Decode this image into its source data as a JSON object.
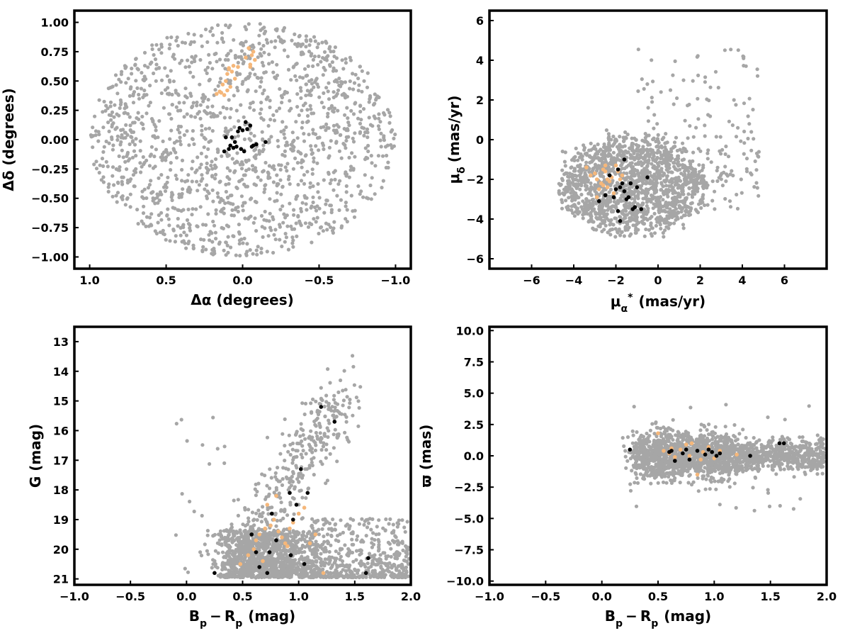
{
  "colors": {
    "field": "#a6a6a6",
    "orange": "#f5b77a",
    "black": "#000000",
    "frame": "#000000"
  },
  "chart_data": [
    {
      "id": "sky",
      "type": "scatter",
      "xlabel": "Δα (degrees)",
      "ylabel": "Δδ (degrees)",
      "xlim": [
        1.1,
        -1.1
      ],
      "ylim": [
        -1.1,
        1.1
      ],
      "x_inverted": true,
      "xticks": [
        1.0,
        0.5,
        0.0,
        -0.5,
        -1.0
      ],
      "xtick_labels": [
        "1.0",
        "0.5",
        "0.0",
        "−0.5",
        "−1.0"
      ],
      "yticks": [
        -1.0,
        -0.75,
        -0.5,
        -0.25,
        0.0,
        0.25,
        0.5,
        0.75,
        1.0
      ],
      "ytick_labels": [
        "−1.00",
        "−0.75",
        "−0.50",
        "−0.25",
        "0.00",
        "0.25",
        "0.50",
        "0.75",
        "1.00"
      ],
      "grid": false,
      "legend": "none",
      "background_field": {
        "shape": "disk",
        "center": [
          0,
          0
        ],
        "radius": [
          1.0,
          1.0
        ],
        "n_points": 1500
      },
      "series": [
        {
          "color": "#f5b77a",
          "x": [
            0.12,
            0.1,
            0.08,
            0.13,
            0.05,
            0.1,
            0.07,
            0.09,
            0.03,
            -0.05,
            -0.06,
            -0.04,
            -0.07,
            -0.08,
            -0.05,
            0.11,
            0.15,
            0.17,
            0.14,
            0.06,
            0.09,
            -0.02
          ],
          "y": [
            0.38,
            0.42,
            0.45,
            0.47,
            0.52,
            0.56,
            0.58,
            0.6,
            0.62,
            0.64,
            0.72,
            0.78,
            0.75,
            0.68,
            0.62,
            0.5,
            0.41,
            0.39,
            0.4,
            0.63,
            0.61,
            0.7
          ]
        },
        {
          "color": "#000000",
          "x": [
            -0.02,
            -0.05,
            -0.03,
            0.0,
            0.03,
            0.07,
            0.05,
            0.08,
            0.11,
            0.09,
            0.12,
            0.06,
            0.04,
            0.01,
            -0.01,
            -0.07,
            -0.09,
            -0.06,
            -0.15,
            0.02
          ],
          "y": [
            0.15,
            0.12,
            0.09,
            0.08,
            0.07,
            0.02,
            -0.02,
            -0.05,
            0.02,
            -0.08,
            -0.1,
            -0.07,
            -0.06,
            -0.08,
            -0.1,
            -0.05,
            -0.04,
            -0.06,
            -0.02,
            0.1
          ]
        }
      ]
    },
    {
      "id": "pm",
      "type": "scatter",
      "xlabel": "μα* (mas/yr)",
      "ylabel": "μδ (mas/yr)",
      "xlim": [
        -8,
        8
      ],
      "ylim": [
        -6.5,
        6.5
      ],
      "xticks": [
        -6,
        -4,
        -2,
        0,
        2,
        4,
        6
      ],
      "xtick_labels": [
        "−6",
        "−4",
        "−2",
        "0",
        "2",
        "4",
        "6"
      ],
      "yticks": [
        -6,
        -4,
        -2,
        0,
        2,
        4,
        6
      ],
      "ytick_labels": [
        "−6",
        "−4",
        "−2",
        "0",
        "2",
        "4",
        "6"
      ],
      "grid": false,
      "legend": "none",
      "background_field": {
        "shape": "blob",
        "center": [
          -1.2,
          -2.3
        ],
        "n_points": 1500
      },
      "series": [
        {
          "color": "#f5b77a",
          "x": [
            -3.2,
            -3.0,
            -2.9,
            -2.7,
            -2.6,
            -2.5,
            -2.4,
            -2.3,
            -2.2,
            -2.0,
            -1.9,
            -1.8,
            -2.6,
            -2.8,
            -3.4,
            -2.1,
            -2.5,
            -1.7,
            -2.4,
            -2.9
          ],
          "y": [
            -1.8,
            -1.7,
            -2.0,
            -2.2,
            -1.5,
            -1.6,
            -2.4,
            -2.1,
            -1.9,
            -1.3,
            -1.6,
            -2.0,
            -2.3,
            -2.5,
            -1.4,
            -2.7,
            -1.3,
            -1.8,
            -2.0,
            -2.9
          ]
        },
        {
          "color": "#000000",
          "x": [
            -2.8,
            -2.5,
            -2.3,
            -2.0,
            -1.9,
            -1.8,
            -1.7,
            -1.6,
            -1.5,
            -1.3,
            -1.1,
            -1.0,
            -0.8,
            -0.5,
            -1.9,
            -1.6,
            -1.4,
            -2.1,
            -1.8,
            -1.2
          ],
          "y": [
            -3.1,
            -2.8,
            -1.8,
            -2.5,
            -3.6,
            -4.1,
            -2.2,
            -2.6,
            -3.0,
            -2.2,
            -3.4,
            -2.4,
            -3.5,
            -1.9,
            -1.5,
            -1.0,
            -2.9,
            -2.9,
            -2.4,
            -3.5
          ]
        }
      ]
    },
    {
      "id": "cmd",
      "type": "scatter",
      "xlabel": "Bp − Rp (mag)",
      "ylabel": "G (mag)",
      "xlim": [
        -1.0,
        2.0
      ],
      "ylim": [
        21.2,
        12.5
      ],
      "y_inverted": true,
      "xticks": [
        -1.0,
        -0.5,
        0.0,
        0.5,
        1.0,
        1.5,
        2.0
      ],
      "xtick_labels": [
        "−1.0",
        "−0.5",
        "0.0",
        "0.5",
        "1.0",
        "1.5",
        "2.0"
      ],
      "yticks": [
        13,
        14,
        15,
        16,
        17,
        18,
        19,
        20,
        21
      ],
      "ytick_labels": [
        "13",
        "14",
        "15",
        "16",
        "17",
        "18",
        "19",
        "20",
        "21"
      ],
      "grid": false,
      "legend": "none",
      "background_field": {
        "shape": "cmd",
        "n_points": 2000
      },
      "series": [
        {
          "color": "#f5b77a",
          "x": [
            0.48,
            0.55,
            0.6,
            0.62,
            0.65,
            0.7,
            0.75,
            0.78,
            0.82,
            0.85,
            0.88,
            0.92,
            0.95,
            1.0,
            1.05,
            1.1,
            1.15,
            1.22,
            0.72,
            0.8,
            0.9,
            0.68
          ],
          "y": [
            20.5,
            20.2,
            20.0,
            19.7,
            19.5,
            19.3,
            19.2,
            19.0,
            19.4,
            19.6,
            19.8,
            19.3,
            19.1,
            18.8,
            18.6,
            19.8,
            19.5,
            20.8,
            18.5,
            18.2,
            19.9,
            20.4
          ]
        },
        {
          "color": "#000000",
          "x": [
            0.25,
            0.58,
            0.62,
            0.65,
            0.72,
            0.74,
            0.76,
            0.8,
            0.93,
            0.95,
            0.98,
            1.02,
            1.05,
            1.08,
            1.2,
            1.32,
            1.6,
            1.62,
            0.92
          ],
          "y": [
            20.8,
            19.5,
            20.1,
            20.6,
            20.8,
            20.1,
            18.8,
            19.7,
            20.2,
            19.0,
            18.5,
            17.3,
            20.5,
            18.1,
            15.2,
            15.7,
            20.8,
            20.3,
            18.1
          ]
        }
      ]
    },
    {
      "id": "parallax",
      "type": "scatter",
      "xlabel": "Bp − Rp (mag)",
      "ylabel": "ϖ (mas)",
      "xlim": [
        -1.0,
        2.0
      ],
      "ylim": [
        -10.3,
        10.3
      ],
      "xticks": [
        -1.0,
        -0.5,
        0.0,
        0.5,
        1.0,
        1.5,
        2.0
      ],
      "xtick_labels": [
        "−1.0",
        "−0.5",
        "0.0",
        "0.5",
        "1.0",
        "1.5",
        "2.0"
      ],
      "yticks": [
        -10.0,
        -7.5,
        -5.0,
        -2.5,
        0.0,
        2.5,
        5.0,
        7.5,
        10.0
      ],
      "ytick_labels": [
        "−10.0",
        "−7.5",
        "−5.0",
        "−2.5",
        "0.0",
        "2.5",
        "5.0",
        "7.5",
        "10.0"
      ],
      "grid": false,
      "legend": "none",
      "background_field": {
        "shape": "band",
        "n_points": 2000
      },
      "series": [
        {
          "color": "#f5b77a",
          "x": [
            0.5,
            0.55,
            0.6,
            0.65,
            0.7,
            0.75,
            0.8,
            0.85,
            0.9,
            0.95,
            1.0,
            1.05,
            1.2,
            0.78,
            0.88,
            0.62
          ],
          "y": [
            1.8,
            0.4,
            0.2,
            -0.1,
            0.5,
            0.9,
            1.0,
            -1.5,
            0.3,
            0.7,
            -0.2,
            0.4,
            0.1,
            0.0,
            -0.3,
            0.6
          ]
        },
        {
          "color": "#000000",
          "x": [
            0.25,
            0.6,
            0.62,
            0.65,
            0.72,
            0.75,
            0.78,
            0.92,
            0.95,
            0.98,
            1.02,
            1.05,
            1.32,
            1.58,
            1.62,
            0.85
          ],
          "y": [
            0.5,
            0.3,
            0.4,
            -0.4,
            0.2,
            0.5,
            -0.3,
            0.1,
            0.5,
            0.3,
            0.0,
            0.2,
            0.0,
            1.0,
            1.0,
            0.4
          ]
        }
      ]
    }
  ]
}
